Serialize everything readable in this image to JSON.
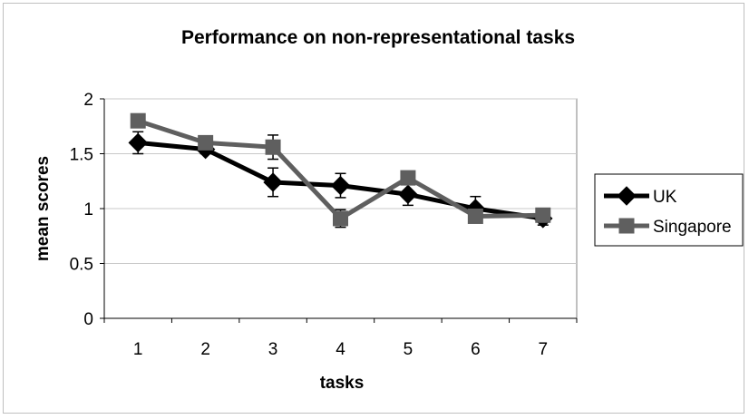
{
  "chart_data": {
    "type": "line",
    "title": "Performance on non-representational tasks",
    "xlabel": "tasks",
    "ylabel": "mean scores",
    "categories": [
      "1",
      "2",
      "3",
      "4",
      "5",
      "6",
      "7"
    ],
    "ylim": [
      0,
      2
    ],
    "yticks": [
      "0",
      "0.5",
      "1",
      "1.5",
      "2"
    ],
    "grid": true,
    "legend_position": "right",
    "error_bars": true,
    "series": [
      {
        "name": "UK",
        "color": "#000000",
        "marker": "diamond",
        "values": [
          1.6,
          1.54,
          1.24,
          1.21,
          1.13,
          1.0,
          0.91
        ],
        "error": [
          0.1,
          0.04,
          0.13,
          0.11,
          0.1,
          0.11,
          0.06
        ]
      },
      {
        "name": "Singapore",
        "color": "#5f5f5f",
        "marker": "square",
        "values": [
          1.8,
          1.6,
          1.56,
          0.91,
          1.28,
          0.93,
          0.94
        ],
        "error": [
          0.05,
          0.02,
          0.11,
          0.08,
          0.06,
          0.06,
          0.03
        ]
      }
    ]
  }
}
